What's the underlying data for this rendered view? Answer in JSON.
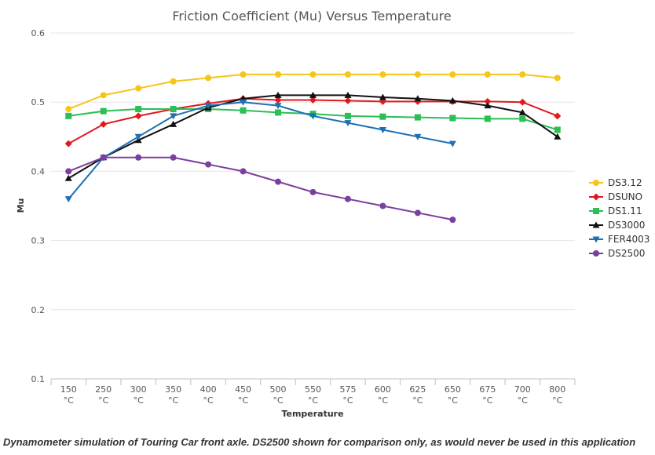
{
  "chart_data": {
    "type": "line",
    "title": "Friction Coefficient (Mu) Versus Temperature",
    "xlabel": "Temperature",
    "ylabel": "Mu",
    "categories": [
      "150 °C",
      "250 °C",
      "300 °C",
      "350 °C",
      "400 °C",
      "450 °C",
      "500 °C",
      "550 °C",
      "575 °C",
      "600 °C",
      "625 °C",
      "650 °C",
      "675 °C",
      "700 °C",
      "800 °C"
    ],
    "ylim": [
      0.1,
      0.6
    ],
    "yticks": [
      "0.1",
      "0.2",
      "0.3",
      "0.4",
      "0.5",
      "0.6"
    ],
    "legend_position": "right",
    "grid": "horizontal",
    "series": [
      {
        "name": "DS3.12",
        "color": "#f5c518",
        "marker": "circle",
        "values": [
          0.49,
          0.51,
          0.52,
          0.53,
          0.535,
          0.54,
          0.54,
          0.54,
          0.54,
          0.54,
          0.54,
          0.54,
          0.54,
          0.54,
          0.535
        ]
      },
      {
        "name": "DSUNO",
        "color": "#e0191f",
        "marker": "diamond",
        "values": [
          0.44,
          0.468,
          0.48,
          0.49,
          0.498,
          0.505,
          0.503,
          0.503,
          0.502,
          0.501,
          0.501,
          0.501,
          0.501,
          0.5,
          0.48
        ]
      },
      {
        "name": "DS1.11",
        "color": "#2bbf55",
        "marker": "square",
        "values": [
          0.48,
          0.487,
          0.49,
          0.49,
          0.49,
          0.488,
          0.485,
          0.483,
          0.48,
          0.479,
          0.478,
          0.477,
          0.476,
          0.476,
          0.46
        ]
      },
      {
        "name": "DS3000",
        "color": "#111111",
        "marker": "triangle",
        "values": [
          0.39,
          0.42,
          0.445,
          0.468,
          0.492,
          0.505,
          0.51,
          0.51,
          0.51,
          0.507,
          0.505,
          0.502,
          0.495,
          0.485,
          0.45
        ]
      },
      {
        "name": "FER4003",
        "color": "#1f6fb4",
        "marker": "triangle-down",
        "values": [
          0.36,
          0.42,
          0.45,
          0.48,
          0.495,
          0.5,
          0.495,
          0.48,
          0.47,
          0.46,
          0.45,
          0.44,
          null,
          null,
          null
        ]
      },
      {
        "name": "DS2500",
        "color": "#7b3fa0",
        "marker": "circle",
        "values": [
          0.4,
          0.42,
          0.42,
          0.42,
          0.41,
          0.4,
          0.385,
          0.37,
          0.36,
          0.35,
          0.34,
          0.33,
          null,
          null,
          null
        ]
      }
    ]
  },
  "caption": "Dynamometer simulation of Touring Car front axle. DS2500 shown for comparison only, as would never be used in this application"
}
